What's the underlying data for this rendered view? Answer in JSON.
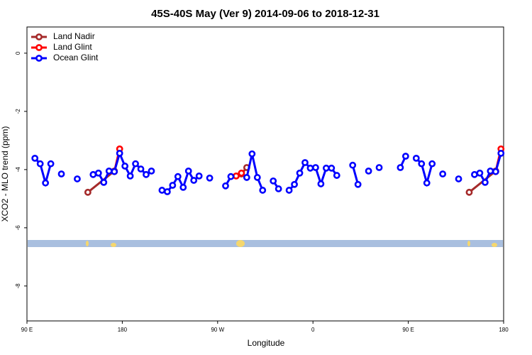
{
  "chart_data": {
    "type": "line",
    "title": "45S-40S May (Ver 9)   2014-09-06 to 2018-12-31",
    "x_label": "Longitude",
    "y_label": "XCO2 - MLO trend (ppm)",
    "xlim": [
      90,
      540
    ],
    "xticks": [
      {
        "value": 90,
        "label": "90 E"
      },
      180,
      {
        "value": 270,
        "label": "90 W"
      },
      {
        "value": 360,
        "label": "0"
      },
      {
        "value": 450,
        "label": "90 E"
      },
      {
        "value": 540,
        "label": "180"
      }
    ],
    "ylim": [
      -9.2,
      0.9
    ],
    "yticks": [
      0,
      -2,
      -4,
      -6,
      -8
    ],
    "legend": "top-left",
    "series": [
      {
        "name": "Land Nadir",
        "color": "#a52a2a",
        "x": [
          147.5,
          172.5,
          null,
          292.5,
          297.5,
          null,
          507.5,
          532.5
        ],
        "values": [
          -4.78,
          -4.05,
          null,
          -4.15,
          -3.93,
          null,
          -4.78,
          -4.05
        ]
      },
      {
        "name": "Land Glint",
        "color": "#ff0000",
        "x": [
          172.5,
          177.5,
          null,
          287.5,
          292.5,
          null,
          532.5,
          537.5
        ],
        "values": [
          -4.07,
          -3.29,
          null,
          -4.22,
          -4.12,
          null,
          -4.07,
          -3.29
        ]
      },
      {
        "name": "Ocean Glint",
        "color": "#0000ff",
        "x": [
          97.5,
          102.5,
          107.5,
          112.5,
          null,
          122.5,
          null,
          137.5,
          null,
          152.5,
          157.5,
          162.5,
          167.5,
          172.5,
          177.5,
          182.5,
          187.5,
          192.5,
          197.5,
          202.5,
          207.5,
          null,
          217.5,
          222.5,
          227.5,
          232.5,
          237.5,
          242.5,
          247.5,
          252.5,
          null,
          262.5,
          null,
          277.5,
          282.5,
          null,
          297.5,
          302.5,
          307.5,
          312.5,
          null,
          322.5,
          327.5,
          null,
          337.5,
          342.5,
          347.5,
          352.5,
          357.5,
          362.5,
          367.5,
          372.5,
          377.5,
          382.5,
          null,
          397.5,
          402.5,
          null,
          412.5,
          null,
          422.5,
          null,
          442.5,
          447.5,
          null,
          457.5,
          462.5,
          467.5,
          472.5,
          null,
          482.5,
          null,
          497.5,
          null,
          512.5,
          517.5,
          522.5,
          527.5,
          532.5,
          537.5
        ],
        "values": [
          -3.61,
          -3.8,
          -4.46,
          -3.8,
          null,
          -4.15,
          null,
          -4.32,
          null,
          -4.17,
          -4.12,
          -4.44,
          -4.05,
          -4.07,
          -3.44,
          -3.88,
          -4.22,
          -3.8,
          -3.98,
          -4.17,
          -4.05,
          null,
          -4.71,
          -4.76,
          -4.54,
          -4.24,
          -4.61,
          -4.05,
          -4.37,
          -4.22,
          null,
          -4.29,
          null,
          -4.56,
          -4.24,
          null,
          -4.27,
          -3.46,
          -4.27,
          -4.71,
          null,
          -4.39,
          -4.66,
          null,
          -4.71,
          -4.51,
          -4.12,
          -3.76,
          -3.95,
          -3.93,
          -4.49,
          -3.95,
          -3.95,
          -4.2,
          null,
          -3.85,
          -4.51,
          null,
          -4.05,
          null,
          -3.93,
          null,
          -3.93,
          -3.54,
          null,
          -3.61,
          -3.8,
          -4.46,
          -3.8,
          null,
          -4.15,
          null,
          -4.32,
          null,
          -4.17,
          -4.12,
          -4.44,
          -4.05,
          -4.07,
          -3.44
        ]
      }
    ]
  }
}
